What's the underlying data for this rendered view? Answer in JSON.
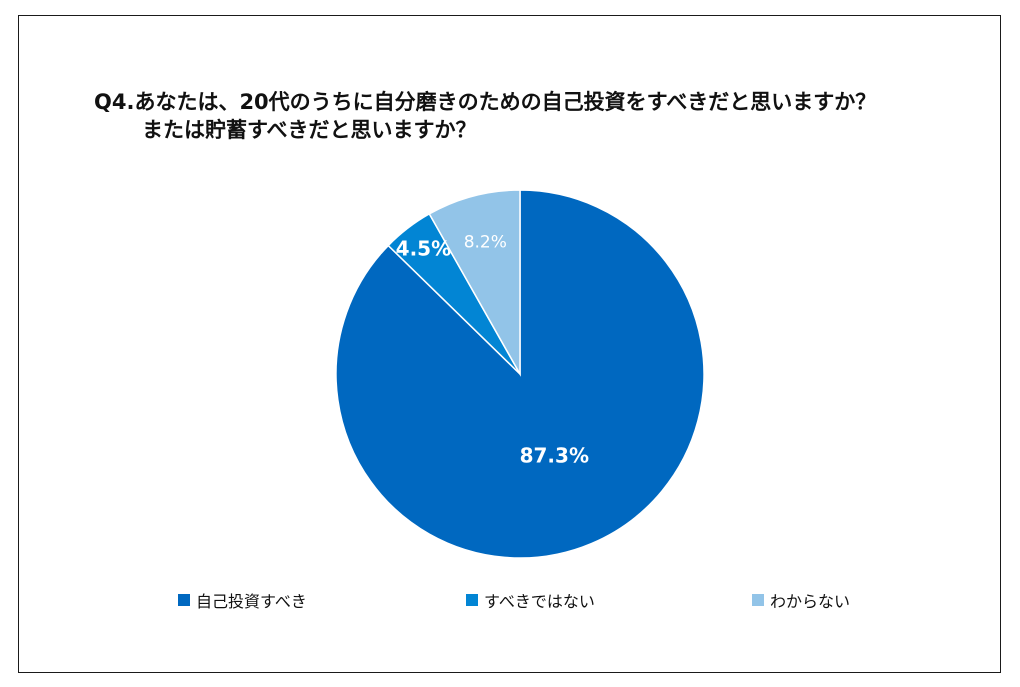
{
  "chart_data": {
    "type": "pie",
    "title": "Q4.あなたは、20代のうちに自分磨きのための自己投資をすべきだと思いますか？",
    "subtitle": "または貯蓄すべきだと思いますか？",
    "slices": [
      {
        "label": "自己投資すべき",
        "value": 87.3,
        "display": "87.3%",
        "color": "#0068c0",
        "label_color": "#ffffff",
        "label_bold": true
      },
      {
        "label": "すべきではない",
        "value": 4.5,
        "display": "4.5%",
        "color": "#0285d4",
        "label_color": "#ffffff",
        "label_bold": true
      },
      {
        "label": "わからない",
        "value": 8.2,
        "display": "8.2%",
        "color": "#92c4e8",
        "label_color": "#ffffff",
        "label_bold": false
      }
    ],
    "start_angle_deg": 0,
    "direction": "clockwise",
    "legend_position": "bottom"
  }
}
